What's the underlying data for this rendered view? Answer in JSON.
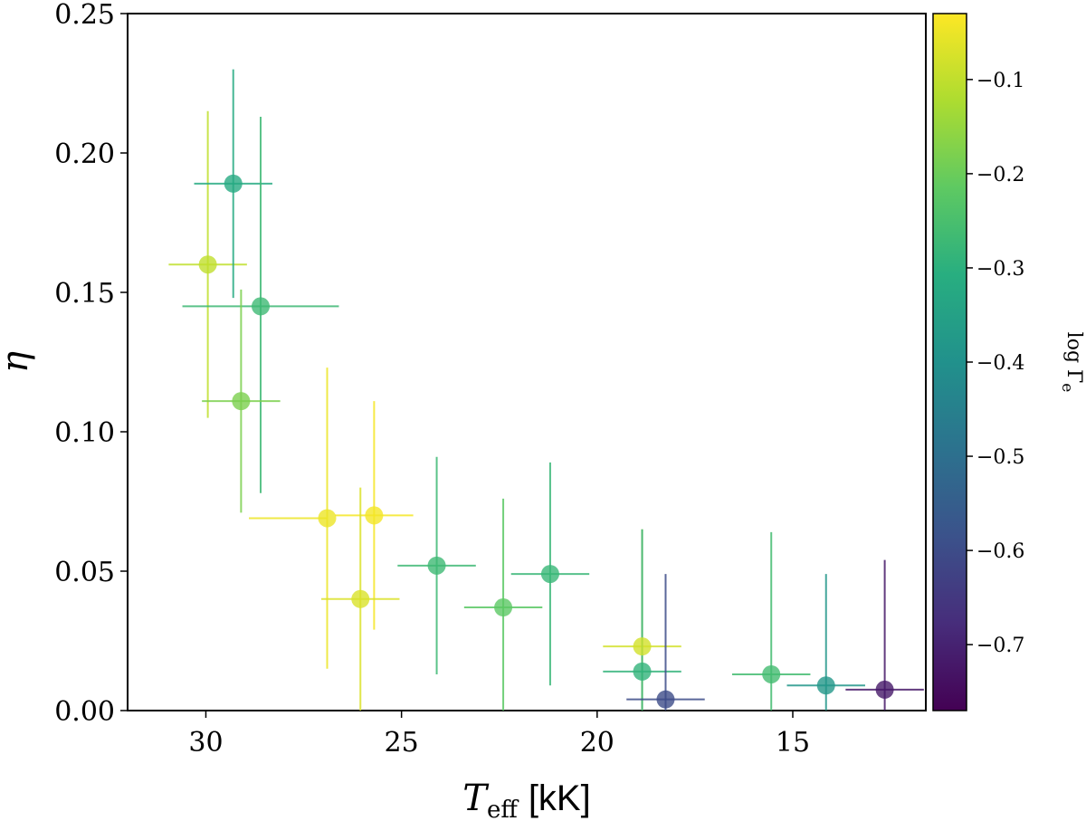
{
  "chart_data": {
    "type": "scatter",
    "title": "",
    "xlabel": {
      "symbol": "T",
      "subscript": "eff",
      "unit": "[kK]"
    },
    "ylabel": "η",
    "xlim": [
      32.0,
      11.6
    ],
    "ylim": [
      0.0,
      0.25
    ],
    "xticks": [
      30,
      25,
      20,
      15
    ],
    "xtick_labels": [
      "30",
      "25",
      "20",
      "15"
    ],
    "yticks": [
      0.0,
      0.05,
      0.1,
      0.15,
      0.2,
      0.25
    ],
    "ytick_labels": [
      "0.00",
      "0.05",
      "0.10",
      "0.15",
      "0.20",
      "0.25"
    ],
    "grid": false,
    "colorbar": {
      "label": "log Γ_e",
      "label_main": "log Γ",
      "label_sub": "e",
      "range": [
        -0.77,
        -0.03
      ],
      "ticks": [
        -0.1,
        -0.2,
        -0.3,
        -0.4,
        -0.5,
        -0.6,
        -0.7
      ],
      "tick_labels": [
        "−0.1",
        "−0.2",
        "−0.3",
        "−0.4",
        "−0.5",
        "−0.6",
        "−0.7"
      ],
      "colormap": "viridis"
    },
    "points": [
      {
        "teff": 29.95,
        "eta": 0.16,
        "x_lo": 30.95,
        "x_hi": 28.95,
        "y_lo": 0.105,
        "y_hi": 0.215,
        "log_gamma": -0.1
      },
      {
        "teff": 29.3,
        "eta": 0.189,
        "x_lo": 30.3,
        "x_hi": 28.3,
        "y_lo": 0.148,
        "y_hi": 0.23,
        "log_gamma": -0.32
      },
      {
        "teff": 28.6,
        "eta": 0.145,
        "x_lo": 30.6,
        "x_hi": 26.6,
        "y_lo": 0.078,
        "y_hi": 0.213,
        "log_gamma": -0.27
      },
      {
        "teff": 29.1,
        "eta": 0.111,
        "x_lo": 30.1,
        "x_hi": 28.1,
        "y_lo": 0.071,
        "y_hi": 0.151,
        "log_gamma": -0.18
      },
      {
        "teff": 26.9,
        "eta": 0.069,
        "x_lo": 28.9,
        "x_hi": 26.9,
        "y_lo": 0.015,
        "y_hi": 0.123,
        "log_gamma": -0.05
      },
      {
        "teff": 25.7,
        "eta": 0.07,
        "x_lo": 26.7,
        "x_hi": 24.7,
        "y_lo": 0.029,
        "y_hi": 0.111,
        "log_gamma": -0.04
      },
      {
        "teff": 26.05,
        "eta": 0.04,
        "x_lo": 27.05,
        "x_hi": 25.05,
        "y_lo": 0.0,
        "y_hi": 0.08,
        "log_gamma": -0.07
      },
      {
        "teff": 24.1,
        "eta": 0.052,
        "x_lo": 25.1,
        "x_hi": 23.1,
        "y_lo": 0.013,
        "y_hi": 0.091,
        "log_gamma": -0.27
      },
      {
        "teff": 22.4,
        "eta": 0.037,
        "x_lo": 23.4,
        "x_hi": 21.4,
        "y_lo": 0.0,
        "y_hi": 0.076,
        "log_gamma": -0.22
      },
      {
        "teff": 21.2,
        "eta": 0.049,
        "x_lo": 22.2,
        "x_hi": 20.2,
        "y_lo": 0.009,
        "y_hi": 0.089,
        "log_gamma": -0.28
      },
      {
        "teff": 18.85,
        "eta": 0.023,
        "x_lo": 19.85,
        "x_hi": 17.85,
        "y_lo": 0.0,
        "y_hi": 0.065,
        "log_gamma": -0.08
      },
      {
        "teff": 18.85,
        "eta": 0.014,
        "x_lo": 19.85,
        "x_hi": 17.85,
        "y_lo": 0.0,
        "y_hi": 0.065,
        "log_gamma": -0.29
      },
      {
        "teff": 18.25,
        "eta": 0.004,
        "x_lo": 19.25,
        "x_hi": 17.25,
        "y_lo": 0.0,
        "y_hi": 0.049,
        "log_gamma": -0.6
      },
      {
        "teff": 15.55,
        "eta": 0.013,
        "x_lo": 16.55,
        "x_hi": 14.55,
        "y_lo": 0.0,
        "y_hi": 0.064,
        "log_gamma": -0.26
      },
      {
        "teff": 14.15,
        "eta": 0.009,
        "x_lo": 15.15,
        "x_hi": 13.15,
        "y_lo": 0.0,
        "y_hi": 0.049,
        "log_gamma": -0.38
      },
      {
        "teff": 12.65,
        "eta": 0.0075,
        "x_lo": 13.65,
        "x_hi": 11.65,
        "y_lo": 0.0,
        "y_hi": 0.054,
        "log_gamma": -0.72
      }
    ]
  }
}
